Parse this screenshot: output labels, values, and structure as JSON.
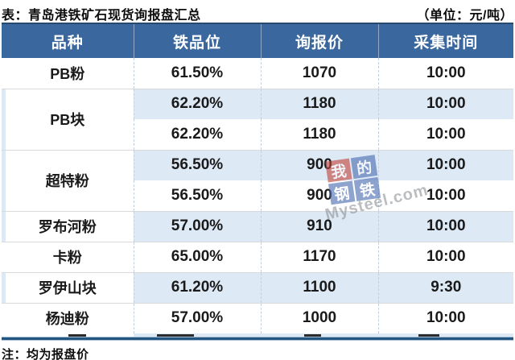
{
  "header": {
    "title": "表：青岛港铁矿石现货询报盘汇总",
    "unit_label": "（单位：元/吨）"
  },
  "table": {
    "columns": [
      "品种",
      "铁品位",
      "询报价",
      "采集时间"
    ],
    "groups": [
      {
        "variety": "PB粉",
        "entries": [
          {
            "grade": "61.50%",
            "price": "1070",
            "time": "10:00"
          }
        ]
      },
      {
        "variety": "PB块",
        "entries": [
          {
            "grade": "62.20%",
            "price": "1180",
            "time": "10:00"
          },
          {
            "grade": "62.20%",
            "price": "1180",
            "time": "10:00"
          }
        ]
      },
      {
        "variety": "超特粉",
        "entries": [
          {
            "grade": "56.50%",
            "price": "900",
            "time": "10:00"
          },
          {
            "grade": "56.50%",
            "price": "900",
            "time": "10:00"
          }
        ]
      },
      {
        "variety": "罗布河粉",
        "entries": [
          {
            "grade": "57.00%",
            "price": "910",
            "time": "10:00"
          }
        ]
      },
      {
        "variety": "卡粉",
        "entries": [
          {
            "grade": "65.00%",
            "price": "1170",
            "time": "10:00"
          }
        ]
      },
      {
        "variety": "罗伊山块",
        "entries": [
          {
            "grade": "61.20%",
            "price": "1100",
            "time": "9:30"
          }
        ]
      },
      {
        "variety": "杨迪粉",
        "entries": [
          {
            "grade": "57.00%",
            "price": "1000",
            "time": "10:00"
          }
        ]
      }
    ]
  },
  "note": "注：均为报盘价",
  "watermark": {
    "tiles": [
      "我",
      "的",
      "钢",
      "铁"
    ],
    "brand": "Mysteel.com"
  },
  "colors": {
    "header_bg": "#3a679d",
    "band_bg": "#dde9f5",
    "border_navy": "#24557f",
    "group_line": "#d9d9d9",
    "watermark_red": "#c2453d",
    "watermark_blue": "#4a6cb0"
  }
}
